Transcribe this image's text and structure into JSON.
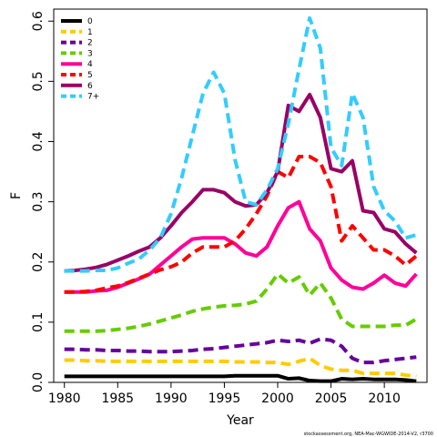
{
  "chart_data": {
    "type": "line",
    "xlabel": "Year",
    "ylabel": "F",
    "xlim": [
      1979,
      2014
    ],
    "ylim": [
      0,
      0.62
    ],
    "xticks": [
      1980,
      1985,
      1990,
      1995,
      2000,
      2005,
      2010
    ],
    "yticks": [
      0.0,
      0.1,
      0.2,
      0.3,
      0.4,
      0.5,
      0.6
    ],
    "ytick_labels": [
      "0.0",
      "0.1",
      "0.2",
      "0.3",
      "0.4",
      "0.5",
      "0.6"
    ],
    "legend_position": "top-left",
    "footnote": "stockassessment.org, NEA-Mac-WGWIDE-2014-V2, r3700",
    "x": [
      1980,
      1981,
      1982,
      1983,
      1984,
      1985,
      1986,
      1987,
      1988,
      1989,
      1990,
      1991,
      1992,
      1993,
      1994,
      1995,
      1996,
      1997,
      1998,
      1999,
      2000,
      2001,
      2002,
      2003,
      2004,
      2005,
      2006,
      2007,
      2008,
      2009,
      2010,
      2011,
      2012,
      2013
    ],
    "series": [
      {
        "name": "0",
        "color": "#000000",
        "dash": "solid",
        "values": [
          0.01,
          0.01,
          0.01,
          0.01,
          0.01,
          0.01,
          0.01,
          0.01,
          0.01,
          0.01,
          0.01,
          0.01,
          0.01,
          0.01,
          0.01,
          0.01,
          0.011,
          0.011,
          0.011,
          0.011,
          0.011,
          0.006,
          0.007,
          0.003,
          0.002,
          0.002,
          0.006,
          0.005,
          0.006,
          0.005,
          0.005,
          0.005,
          0.004,
          0.002
        ]
      },
      {
        "name": "1",
        "color": "#ffcc00",
        "dash": "dashed",
        "values": [
          0.037,
          0.037,
          0.036,
          0.036,
          0.035,
          0.035,
          0.035,
          0.035,
          0.035,
          0.035,
          0.035,
          0.035,
          0.035,
          0.035,
          0.035,
          0.035,
          0.034,
          0.034,
          0.034,
          0.033,
          0.033,
          0.03,
          0.035,
          0.04,
          0.028,
          0.022,
          0.02,
          0.02,
          0.015,
          0.015,
          0.015,
          0.015,
          0.012,
          0.01
        ]
      },
      {
        "name": "2",
        "color": "#660099",
        "dash": "dashed",
        "values": [
          0.055,
          0.055,
          0.054,
          0.054,
          0.053,
          0.053,
          0.052,
          0.052,
          0.051,
          0.051,
          0.051,
          0.052,
          0.053,
          0.055,
          0.056,
          0.058,
          0.06,
          0.062,
          0.064,
          0.066,
          0.07,
          0.068,
          0.07,
          0.065,
          0.072,
          0.07,
          0.06,
          0.04,
          0.033,
          0.033,
          0.036,
          0.038,
          0.04,
          0.042
        ]
      },
      {
        "name": "3",
        "color": "#66cc00",
        "dash": "dashed",
        "values": [
          0.085,
          0.085,
          0.085,
          0.085,
          0.086,
          0.088,
          0.09,
          0.093,
          0.097,
          0.102,
          0.107,
          0.112,
          0.118,
          0.122,
          0.125,
          0.127,
          0.128,
          0.13,
          0.135,
          0.155,
          0.18,
          0.165,
          0.175,
          0.145,
          0.165,
          0.14,
          0.105,
          0.093,
          0.093,
          0.093,
          0.093,
          0.095,
          0.095,
          0.105
        ]
      },
      {
        "name": "4",
        "color": "#ff0099",
        "dash": "solid",
        "values": [
          0.15,
          0.15,
          0.15,
          0.152,
          0.153,
          0.158,
          0.165,
          0.172,
          0.18,
          0.195,
          0.21,
          0.225,
          0.238,
          0.24,
          0.24,
          0.24,
          0.23,
          0.215,
          0.21,
          0.225,
          0.26,
          0.29,
          0.3,
          0.255,
          0.235,
          0.19,
          0.17,
          0.158,
          0.155,
          0.165,
          0.178,
          0.165,
          0.16,
          0.18
        ]
      },
      {
        "name": "5",
        "color": "#ff0000",
        "dash": "dashed",
        "values": [
          0.15,
          0.15,
          0.151,
          0.153,
          0.157,
          0.16,
          0.166,
          0.173,
          0.18,
          0.187,
          0.192,
          0.2,
          0.215,
          0.225,
          0.225,
          0.225,
          0.235,
          0.255,
          0.28,
          0.31,
          0.35,
          0.34,
          0.375,
          0.375,
          0.365,
          0.325,
          0.235,
          0.26,
          0.24,
          0.22,
          0.22,
          0.21,
          0.195,
          0.21
        ]
      },
      {
        "name": "6",
        "color": "#990066",
        "dash": "solid",
        "values": [
          0.185,
          0.186,
          0.188,
          0.191,
          0.196,
          0.203,
          0.21,
          0.218,
          0.225,
          0.24,
          0.26,
          0.282,
          0.3,
          0.32,
          0.32,
          0.315,
          0.3,
          0.293,
          0.295,
          0.315,
          0.35,
          0.46,
          0.45,
          0.478,
          0.44,
          0.355,
          0.35,
          0.368,
          0.285,
          0.282,
          0.255,
          0.25,
          0.23,
          0.215
        ]
      },
      {
        "name": "7+",
        "color": "#33ccff",
        "dash": "dashed",
        "values": [
          0.185,
          0.185,
          0.185,
          0.186,
          0.186,
          0.19,
          0.198,
          0.205,
          0.22,
          0.24,
          0.28,
          0.34,
          0.41,
          0.48,
          0.515,
          0.48,
          0.37,
          0.3,
          0.295,
          0.32,
          0.355,
          0.43,
          0.52,
          0.605,
          0.555,
          0.39,
          0.36,
          0.48,
          0.44,
          0.325,
          0.285,
          0.268,
          0.24,
          0.245
        ]
      }
    ]
  }
}
